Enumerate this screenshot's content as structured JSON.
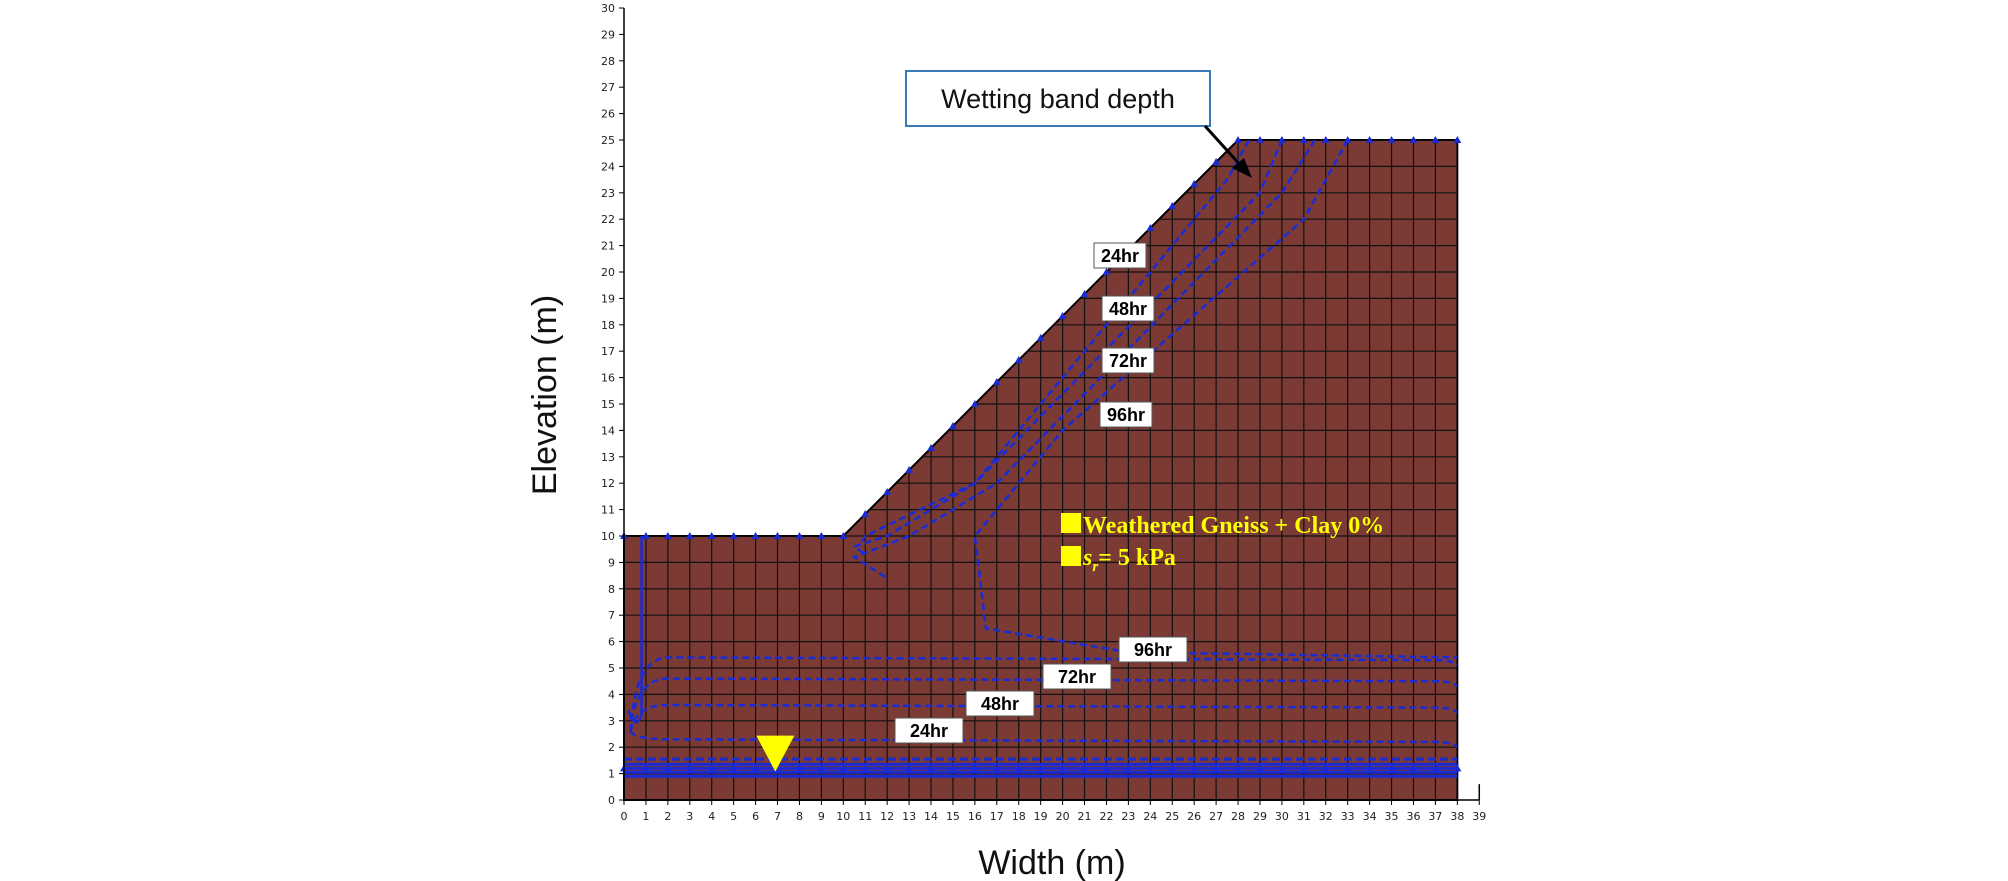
{
  "axes": {
    "x_title": "Width (m)",
    "y_title": "Elevation (m)",
    "x_ticks": [
      0,
      1,
      2,
      3,
      4,
      5,
      6,
      7,
      8,
      9,
      10,
      11,
      12,
      13,
      14,
      15,
      16,
      17,
      18,
      19,
      20,
      21,
      22,
      23,
      24,
      25,
      26,
      27,
      28,
      29,
      30,
      31,
      32,
      33,
      34,
      35,
      36,
      37,
      38,
      39
    ],
    "y_ticks": [
      0,
      1,
      2,
      3,
      4,
      5,
      6,
      7,
      8,
      9,
      10,
      11,
      12,
      13,
      14,
      15,
      16,
      17,
      18,
      19,
      20,
      21,
      22,
      23,
      24,
      25,
      26,
      27,
      28,
      29,
      30
    ],
    "xlim": [
      0,
      39
    ],
    "ylim": [
      0,
      30
    ],
    "grid_spacing_m": 1
  },
  "slope": {
    "profile_xy": [
      [
        0,
        10
      ],
      [
        10,
        10
      ],
      [
        28,
        25
      ],
      [
        38,
        25
      ],
      [
        38,
        0
      ],
      [
        0,
        0
      ]
    ],
    "fill_color": "#7b3b34",
    "grid_color": "#111111",
    "node_color": "#1a2bd6"
  },
  "callout": {
    "text": "Wetting band depth"
  },
  "legend": {
    "material": "Weathered Gneiss + Clay 0%",
    "strength_symbol": "s",
    "strength_subscript": "r",
    "strength_value": "= 5 kPa",
    "marker_color": "#ffff00",
    "text_color": "#ffff00"
  },
  "water_table": {
    "marker_color": "#ffff00",
    "elevation_m": 1.0
  },
  "contours": {
    "color": "#1a2bd6",
    "slope_labels": [
      "24hr",
      "48hr",
      "72hr",
      "96hr"
    ],
    "base_labels": [
      "24hr",
      "48hr",
      "72hr",
      "96hr"
    ],
    "series": [
      {
        "name": "24hr",
        "slope_xy": [
          [
            28.5,
            25
          ],
          [
            27.5,
            23.5
          ],
          [
            16,
            12
          ],
          [
            11,
            10
          ],
          [
            10.8,
            9.7
          ]
        ],
        "base_y": 2.3
      },
      {
        "name": "48hr",
        "slope_xy": [
          [
            30,
            25
          ],
          [
            29,
            23
          ],
          [
            16,
            12
          ],
          [
            12,
            10
          ],
          [
            10.5,
            9.6
          ],
          [
            11,
            9.3
          ]
        ],
        "base_y": 3.6
      },
      {
        "name": "72hr",
        "slope_xy": [
          [
            31.5,
            25
          ],
          [
            30,
            23
          ],
          [
            17,
            12
          ],
          [
            13,
            10
          ],
          [
            10.5,
            9.2
          ],
          [
            12,
            8.4
          ]
        ],
        "base_y": 4.6
      },
      {
        "name": "96hr",
        "slope_xy": [
          [
            33,
            25
          ],
          [
            31,
            22
          ],
          [
            20,
            14
          ],
          [
            16,
            10
          ],
          [
            16.5,
            6.5
          ],
          [
            23,
            5.6
          ],
          [
            38,
            5.4
          ]
        ],
        "base_y": 5.4
      }
    ]
  }
}
